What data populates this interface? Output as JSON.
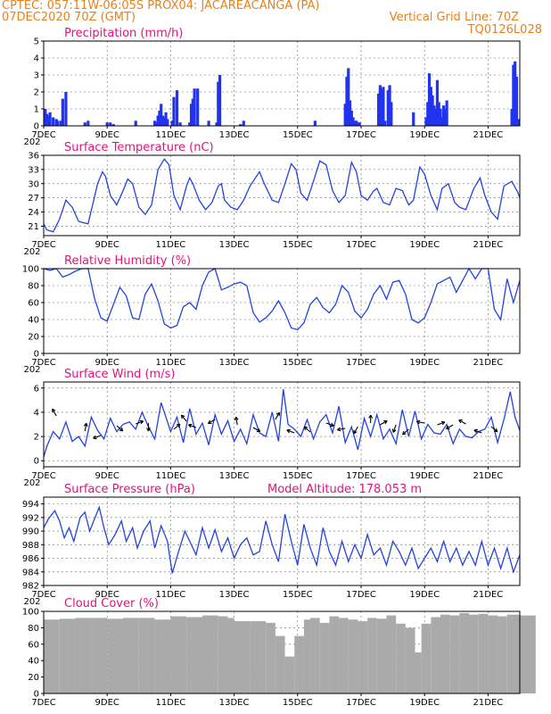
{
  "header": {
    "line1": "CPTEC:   057:11W-06:05S   PROX04: JACAREACANGA (PA)",
    "line2": "07DEC2020 70Z (GMT)",
    "grid_note": "Vertical Grid Line: 70Z",
    "code": "TQ0126L028"
  },
  "colors": {
    "header": "#e8801c",
    "title": "#e0127e",
    "series": "#2244dd",
    "bars": "#2233ee",
    "cloud": "#aaaaaa"
  },
  "x_axis": {
    "day_min": 7,
    "day_max": 22,
    "labels": [
      "7DEC",
      "9DEC",
      "11DEC",
      "13DEC",
      "15DEC",
      "17DEC",
      "19DEC",
      "21DEC"
    ],
    "label_days": [
      7,
      9,
      11,
      13,
      15,
      17,
      19,
      21
    ],
    "year_fragment": "202"
  },
  "chart_data": [
    {
      "type": "bar",
      "id": "precip",
      "title": "Precipitation (mm/h)",
      "ylim": [
        0,
        5
      ],
      "yticks": [
        0,
        1,
        2,
        3,
        4,
        5
      ],
      "x": [
        7.05,
        7.1,
        7.15,
        7.2,
        7.3,
        7.4,
        7.45,
        7.55,
        7.6,
        7.7,
        8.3,
        8.4,
        9.0,
        9.1,
        9.2,
        9.9,
        10.5,
        10.55,
        10.6,
        10.65,
        10.7,
        10.75,
        10.8,
        10.85,
        10.9,
        11.05,
        11.1,
        11.2,
        11.3,
        11.6,
        11.65,
        11.7,
        11.75,
        11.85,
        12.2,
        12.45,
        12.5,
        12.55,
        13.2,
        13.3,
        15.55,
        16.5,
        16.55,
        16.6,
        16.65,
        16.7,
        16.75,
        16.8,
        16.85,
        16.9,
        16.95,
        17.55,
        17.6,
        17.65,
        17.7,
        17.75,
        17.85,
        17.9,
        17.95,
        18.65,
        19.05,
        19.1,
        19.15,
        19.2,
        19.25,
        19.3,
        19.35,
        19.4,
        19.45,
        19.5,
        19.55,
        19.6,
        19.65,
        19.7,
        21.75,
        21.8,
        21.85,
        21.9,
        21.95
      ],
      "values": [
        1.0,
        0.7,
        0.6,
        0.8,
        0.5,
        0.4,
        0.3,
        0.3,
        1.6,
        2.0,
        0.2,
        0.3,
        0.2,
        0.2,
        0.1,
        0.3,
        0.3,
        0.2,
        0.6,
        0.9,
        1.3,
        0.6,
        0.5,
        0.8,
        0.4,
        0.3,
        1.7,
        2.1,
        0.2,
        0.2,
        1.3,
        1.6,
        2.2,
        2.2,
        0.3,
        0.2,
        2.6,
        3.0,
        0.1,
        0.3,
        0.3,
        1.3,
        2.9,
        3.4,
        1.5,
        0.9,
        0.5,
        0.3,
        0.3,
        0.2,
        0.2,
        1.9,
        2.4,
        2.2,
        2.3,
        0.3,
        2.1,
        2.4,
        1.4,
        0.8,
        0.5,
        1.4,
        3.1,
        2.3,
        1.8,
        1.2,
        1.0,
        2.7,
        1.4,
        1.0,
        0.5,
        1.2,
        1.0,
        1.5,
        1.0,
        3.6,
        3.8,
        2.9,
        0.4
      ]
    },
    {
      "type": "line",
      "id": "temp",
      "title": "Surface Temperature (nC)",
      "ylim": [
        19,
        36
      ],
      "yticks": [
        21,
        24,
        27,
        30,
        33,
        36
      ],
      "x": [
        7.0,
        7.1,
        7.3,
        7.5,
        7.7,
        7.9,
        8.1,
        8.4,
        8.7,
        8.85,
        8.95,
        9.1,
        9.3,
        9.5,
        9.65,
        9.8,
        10.0,
        10.2,
        10.4,
        10.6,
        10.8,
        10.95,
        11.1,
        11.3,
        11.5,
        11.6,
        11.7,
        11.9,
        12.1,
        12.3,
        12.5,
        12.6,
        12.7,
        12.9,
        13.1,
        13.3,
        13.5,
        13.7,
        13.8,
        13.95,
        14.2,
        14.4,
        14.6,
        14.8,
        14.95,
        15.1,
        15.3,
        15.5,
        15.7,
        15.9,
        16.1,
        16.3,
        16.5,
        16.7,
        16.85,
        17.0,
        17.2,
        17.4,
        17.5,
        17.7,
        17.9,
        18.1,
        18.3,
        18.5,
        18.65,
        18.85,
        19.0,
        19.2,
        19.4,
        19.55,
        19.75,
        19.95,
        20.1,
        20.3,
        20.55,
        20.75,
        20.9,
        21.1,
        21.3,
        21.5,
        21.75,
        21.95,
        22.0
      ],
      "values": [
        21.5,
        20.2,
        19.8,
        22.5,
        26.5,
        25.0,
        22.0,
        21.5,
        30.0,
        32.5,
        31.5,
        27.5,
        25.5,
        28.5,
        31.0,
        30.0,
        25.0,
        23.5,
        25.5,
        33.0,
        35.2,
        34.0,
        27.5,
        24.5,
        29.5,
        31.2,
        30.0,
        26.5,
        24.5,
        26.0,
        29.5,
        30.0,
        26.5,
        25.0,
        24.5,
        26.5,
        29.5,
        31.5,
        32.5,
        30.0,
        26.5,
        26.0,
        30.0,
        34.2,
        33.0,
        28.0,
        26.5,
        30.5,
        34.8,
        34.0,
        28.5,
        26.0,
        27.5,
        34.5,
        32.5,
        27.5,
        26.5,
        28.5,
        29.0,
        26.0,
        25.5,
        29.0,
        28.5,
        25.5,
        26.5,
        33.5,
        32.0,
        27.5,
        24.5,
        29.0,
        30.0,
        26.0,
        25.0,
        24.5,
        29.0,
        31.2,
        27.5,
        24.0,
        22.5,
        29.5,
        30.5,
        28.0,
        27.0
      ]
    },
    {
      "type": "line",
      "id": "rh",
      "title": "Relative Humidity (%)",
      "ylim": [
        0,
        100
      ],
      "yticks": [
        0,
        20,
        40,
        60,
        80,
        100
      ],
      "x": [
        7.0,
        7.2,
        7.4,
        7.6,
        7.8,
        8.0,
        8.2,
        8.4,
        8.6,
        8.8,
        9.0,
        9.2,
        9.4,
        9.6,
        9.8,
        10.0,
        10.2,
        10.4,
        10.6,
        10.8,
        11.0,
        11.2,
        11.4,
        11.6,
        11.8,
        12.0,
        12.2,
        12.4,
        12.6,
        12.8,
        13.0,
        13.2,
        13.4,
        13.6,
        13.8,
        14.0,
        14.2,
        14.4,
        14.6,
        14.8,
        15.0,
        15.2,
        15.4,
        15.6,
        15.8,
        16.0,
        16.2,
        16.4,
        16.6,
        16.8,
        17.0,
        17.2,
        17.4,
        17.6,
        17.8,
        18.0,
        18.2,
        18.4,
        18.6,
        18.8,
        19.0,
        19.2,
        19.4,
        19.6,
        19.8,
        20.0,
        20.2,
        20.4,
        20.6,
        20.8,
        21.0,
        21.2,
        21.4,
        21.6,
        21.8,
        22.0
      ],
      "values": [
        100,
        98,
        100,
        90,
        93,
        97,
        100,
        100,
        65,
        42,
        38,
        58,
        78,
        68,
        42,
        40,
        70,
        82,
        62,
        35,
        30,
        33,
        55,
        60,
        52,
        80,
        96,
        100,
        75,
        78,
        82,
        84,
        80,
        48,
        37,
        42,
        50,
        62,
        48,
        30,
        28,
        36,
        58,
        66,
        54,
        48,
        58,
        80,
        72,
        50,
        42,
        52,
        70,
        80,
        64,
        84,
        86,
        70,
        40,
        36,
        42,
        60,
        82,
        86,
        90,
        72,
        86,
        100,
        88,
        100,
        100,
        52,
        40,
        88,
        60,
        86
      ]
    },
    {
      "type": "line",
      "id": "wind",
      "title": "Surface Wind (m/s)",
      "ylim": [
        -0.5,
        6.5
      ],
      "yticks": [
        0,
        2,
        4,
        6
      ],
      "x": [
        7.0,
        7.1,
        7.3,
        7.5,
        7.7,
        7.9,
        8.1,
        8.3,
        8.5,
        8.7,
        8.9,
        9.1,
        9.3,
        9.5,
        9.7,
        9.9,
        10.1,
        10.3,
        10.5,
        10.7,
        10.85,
        11.0,
        11.2,
        11.4,
        11.6,
        11.8,
        12.0,
        12.2,
        12.4,
        12.6,
        12.8,
        13.0,
        13.2,
        13.4,
        13.6,
        13.8,
        14.0,
        14.2,
        14.4,
        14.55,
        14.7,
        14.9,
        15.1,
        15.3,
        15.5,
        15.7,
        15.9,
        16.1,
        16.3,
        16.5,
        16.7,
        16.9,
        17.1,
        17.3,
        17.5,
        17.7,
        17.9,
        18.1,
        18.3,
        18.5,
        18.7,
        18.9,
        19.1,
        19.3,
        19.5,
        19.7,
        19.9,
        20.1,
        20.3,
        20.5,
        20.7,
        20.9,
        21.1,
        21.3,
        21.5,
        21.7,
        21.85,
        22.0
      ],
      "values": [
        0.3,
        1.2,
        2.4,
        1.8,
        3.2,
        1.6,
        2.0,
        1.2,
        3.6,
        2.5,
        1.8,
        3.5,
        2.4,
        3.0,
        3.2,
        2.6,
        4.0,
        2.8,
        1.8,
        4.8,
        3.6,
        2.4,
        3.6,
        1.5,
        4.3,
        2.2,
        3.1,
        1.3,
        3.8,
        2.2,
        3.3,
        1.6,
        2.6,
        1.4,
        3.8,
        2.3,
        2.0,
        4.0,
        1.6,
        5.9,
        3.0,
        2.6,
        2.0,
        3.4,
        1.8,
        3.2,
        3.8,
        2.3,
        4.5,
        1.5,
        2.8,
        0.9,
        3.5,
        2.0,
        3.8,
        1.8,
        2.6,
        1.4,
        4.2,
        2.0,
        4.1,
        1.8,
        3.0,
        2.3,
        2.2,
        3.0,
        1.4,
        2.6,
        2.0,
        1.9,
        2.4,
        2.6,
        3.6,
        1.5,
        3.4,
        5.7,
        3.6,
        2.5
      ]
    },
    {
      "type": "line",
      "id": "pres",
      "title": "Surface Pressure (hPa)",
      "subtitle": "Model Altitude: 178.053 m",
      "ylim": [
        982,
        995
      ],
      "yticks": [
        982,
        984,
        986,
        988,
        990,
        992,
        994
      ],
      "x": [
        7.0,
        7.15,
        7.35,
        7.5,
        7.65,
        7.8,
        7.95,
        8.15,
        8.3,
        8.45,
        8.6,
        8.75,
        8.9,
        9.05,
        9.25,
        9.45,
        9.6,
        9.8,
        9.95,
        10.15,
        10.35,
        10.5,
        10.7,
        10.9,
        11.05,
        11.25,
        11.45,
        11.6,
        11.8,
        12.0,
        12.2,
        12.4,
        12.6,
        12.8,
        13.0,
        13.2,
        13.4,
        13.6,
        13.8,
        14.0,
        14.2,
        14.4,
        14.6,
        14.8,
        15.0,
        15.2,
        15.4,
        15.6,
        15.8,
        16.0,
        16.2,
        16.4,
        16.6,
        16.8,
        17.0,
        17.2,
        17.4,
        17.6,
        17.8,
        18.0,
        18.2,
        18.4,
        18.6,
        18.8,
        19.0,
        19.2,
        19.4,
        19.6,
        19.8,
        20.0,
        20.2,
        20.4,
        20.6,
        20.8,
        21.0,
        21.2,
        21.4,
        21.6,
        21.8,
        22.0
      ],
      "values": [
        990.5,
        991.8,
        993.0,
        991.5,
        989.0,
        990.5,
        988.5,
        992.0,
        992.8,
        990.0,
        991.8,
        993.5,
        990.5,
        988.0,
        989.5,
        991.5,
        988.5,
        990.5,
        987.5,
        990.0,
        991.5,
        987.5,
        990.8,
        988.5,
        983.8,
        987.0,
        990.0,
        988.5,
        986.5,
        990.5,
        987.5,
        990.2,
        987.0,
        989.0,
        986.0,
        988.0,
        989.0,
        986.5,
        987.0,
        991.5,
        988.0,
        985.5,
        992.5,
        988.5,
        985.0,
        991.0,
        987.5,
        985.0,
        990.5,
        987.0,
        985.0,
        988.5,
        985.5,
        988.0,
        986.0,
        989.5,
        986.5,
        987.5,
        985.0,
        988.5,
        987.0,
        985.0,
        987.5,
        984.5,
        986.0,
        987.5,
        985.5,
        988.5,
        985.5,
        987.5,
        985.0,
        987.0,
        985.0,
        988.5,
        985.0,
        987.5,
        984.5,
        987.5,
        984.0,
        986.5
      ]
    },
    {
      "type": "area",
      "id": "cloud",
      "title": "Cloud Cover (%)",
      "ylim": [
        0,
        100
      ],
      "yticks": [
        0,
        20,
        40,
        60,
        80,
        100
      ],
      "x": [
        7.0,
        7.5,
        8.0,
        8.5,
        9.0,
        9.5,
        10.0,
        10.5,
        11.0,
        11.5,
        12.0,
        12.5,
        12.8,
        13.0,
        13.5,
        14.0,
        14.3,
        14.6,
        14.9,
        15.2,
        15.4,
        15.7,
        16.0,
        16.3,
        16.6,
        16.9,
        17.2,
        17.5,
        17.8,
        18.1,
        18.4,
        18.7,
        18.9,
        19.2,
        19.5,
        19.8,
        20.1,
        20.4,
        20.7,
        21.0,
        21.3,
        21.6,
        22.0
      ],
      "values": [
        90,
        91,
        92,
        92,
        91,
        92,
        92,
        90,
        94,
        93,
        95,
        94,
        92,
        88,
        88,
        86,
        70,
        45,
        70,
        90,
        92,
        86,
        94,
        92,
        90,
        88,
        92,
        91,
        95,
        85,
        80,
        50,
        85,
        93,
        96,
        95,
        98,
        96,
        97,
        95,
        94,
        96,
        95
      ]
    }
  ]
}
